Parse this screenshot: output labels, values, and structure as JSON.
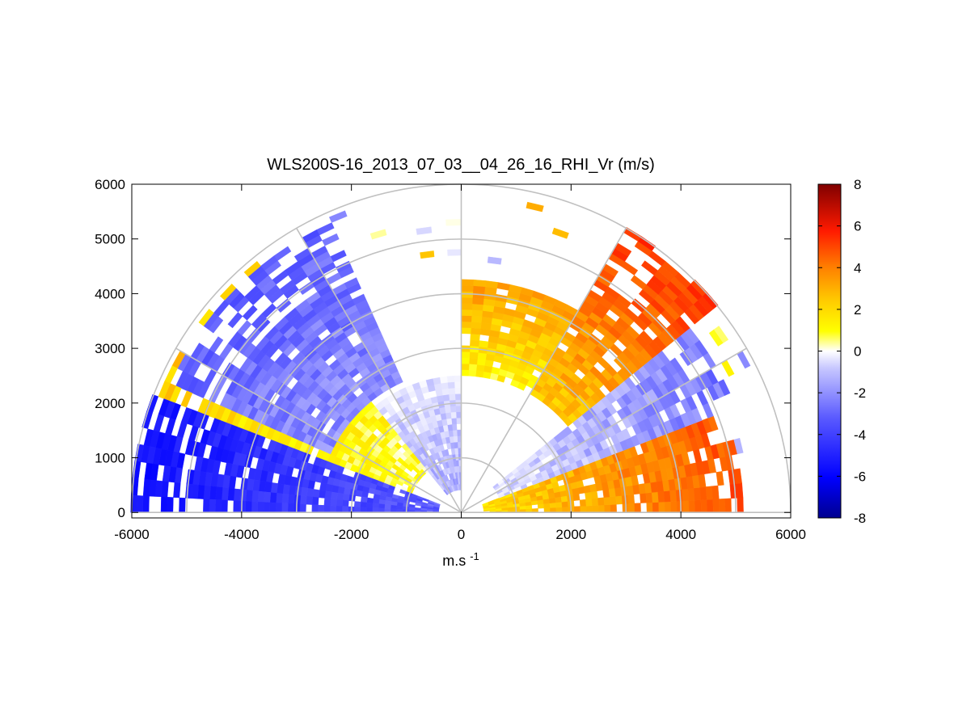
{
  "chart_data": {
    "type": "heatmap",
    "subtype": "polar-rhi-sector",
    "title": "WLS200S-16_2013_07_03__04_26_16_RHI_Vr (m/s)",
    "xlabel": "m.s",
    "xlabel_sup": "-1",
    "ylabel": "",
    "xlim": [
      -6000,
      6000
    ],
    "ylim": [
      -100,
      6000
    ],
    "x_ticks": [
      "-6000",
      "-4000",
      "-2000",
      "0",
      "2000",
      "4000",
      "6000"
    ],
    "y_ticks": [
      "0",
      "1000",
      "2000",
      "3000",
      "4000",
      "5000",
      "6000"
    ],
    "x_tick_values": [
      -6000,
      -4000,
      -2000,
      0,
      2000,
      4000,
      6000
    ],
    "y_tick_values": [
      0,
      1000,
      2000,
      3000,
      4000,
      5000,
      6000
    ],
    "polar_grid": {
      "ranges": [
        1000,
        2000,
        3000,
        4000,
        5000,
        6000
      ],
      "angles_deg": [
        0,
        30,
        60,
        90,
        120,
        150,
        180
      ]
    },
    "colorbar": {
      "min": -8,
      "max": 8,
      "tick_labels": [
        "8",
        "6",
        "4",
        "2",
        "0",
        "-2",
        "-4",
        "-6",
        "-8"
      ],
      "tick_values": [
        8,
        6,
        4,
        2,
        0,
        -2,
        -4,
        -6,
        -8
      ]
    },
    "colors": {
      "grid": "#c0c0c0",
      "strong_negative": "#00008f",
      "negative": "#0000ff",
      "zero": "#ffffff",
      "weak_positive": "#ffff00",
      "positive": "#ff8000",
      "strong_positive": "#800000"
    },
    "velocity_field": {
      "data_range_m": [
        400,
        5800
      ],
      "elevation_deg": [
        0,
        180
      ],
      "regions": [
        {
          "from_deg": 0,
          "to_deg": 22,
          "from_range": 400,
          "to_range": 5100,
          "velocity_start": 1.5,
          "velocity_end": 4.5
        },
        {
          "from_deg": 22,
          "to_deg": 40,
          "from_range": 700,
          "to_range": 5400,
          "velocity_start": -0.5,
          "velocity_end": -2.5
        },
        {
          "from_deg": 40,
          "to_deg": 60,
          "from_range": 2500,
          "to_range": 6000,
          "velocity_start": 2,
          "velocity_end": 5
        },
        {
          "from_deg": 60,
          "to_deg": 90,
          "from_range": 2500,
          "to_range": 4300,
          "velocity_start": 1,
          "velocity_end": 3
        },
        {
          "from_deg": 90,
          "to_deg": 130,
          "from_range": 400,
          "to_range": 2500,
          "velocity_start": -1.5,
          "velocity_end": -0.5
        },
        {
          "from_deg": 130,
          "to_deg": 160,
          "from_range": 1000,
          "to_range": 5900,
          "velocity_start": 0.5,
          "velocity_end": 2
        },
        {
          "from_deg": 160,
          "to_deg": 180,
          "from_range": 400,
          "to_range": 6000,
          "velocity_start": -3,
          "velocity_end": -5.5
        },
        {
          "from_deg": 115,
          "to_deg": 155,
          "from_range": 2600,
          "to_range": 5800,
          "velocity_start": -2,
          "velocity_end": -3
        }
      ]
    }
  }
}
